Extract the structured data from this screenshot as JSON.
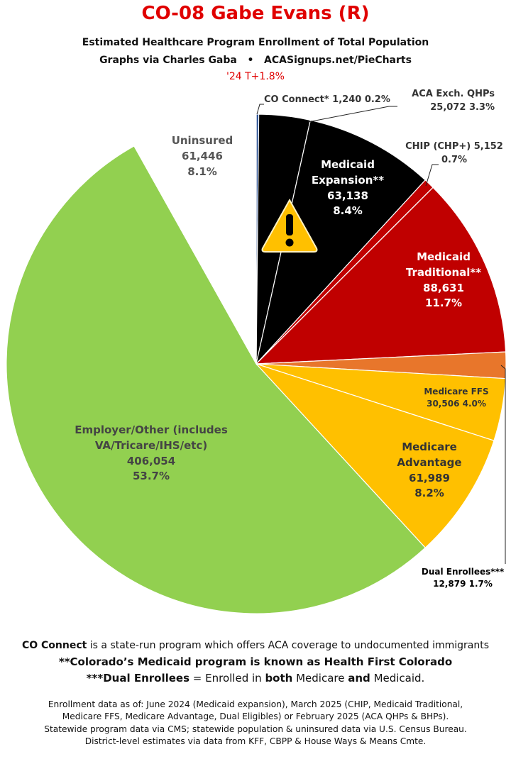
{
  "chart_data": {
    "type": "pie",
    "title": "CO-08 Gabe Evans (R)",
    "subtitle": [
      "Estimated Healthcare Program Enrollment of Total Population",
      "Graphs via Charles Gaba   •   ACASignups.net/PieCharts"
    ],
    "annotation": "'24 T+1.8%",
    "categories": [
      "CO Connect*",
      "ACA Exch. QHPs",
      "Medicaid Expansion**",
      "CHIP (CHP+)",
      "Medicaid Traditional**",
      "Dual Enrollees***",
      "Medicare FFS",
      "Medicare Advantage",
      "Employer/Other (includes VA/Tricare/IHS/etc)",
      "Uninsured"
    ],
    "values": [
      1240,
      25072,
      63138,
      5152,
      88631,
      12879,
      30506,
      61989,
      406054,
      61446
    ],
    "value_labels": [
      "1,240",
      "25,072",
      "63,138",
      "5,152",
      "88,631",
      "12,879",
      "30,506",
      "61,989",
      "406,054",
      "61,446"
    ],
    "percent_labels": [
      "0.2%",
      "3.3%",
      "8.4%",
      "0.7%",
      "11.7%",
      "1.7%",
      "4.0%",
      "8.2%",
      "53.7%",
      "8.1%"
    ],
    "colors": [
      "#2f5597",
      "#000000",
      "#000000",
      "#c00000",
      "#c00000",
      "#e8762b",
      "#ffc000",
      "#ffc000",
      "#92d050",
      "#ffffff"
    ]
  },
  "notes": [
    [
      "CO Connect",
      " is a state-run program which offers ACA coverage to undocumented immigrants"
    ],
    [
      "**Colorado’s Medicaid program is known as ",
      "Health First Colorado"
    ],
    [
      "***",
      "Dual Enrollees",
      " = Enrolled in ",
      "both",
      " Medicare ",
      "and",
      " Medicaid."
    ]
  ],
  "sources": [
    "Enrollment data as of: June 2024 (Medicaid expansion), March 2025 (CHIP, Medicaid Traditional,",
    "Medicare FFS, Medicare Advantage, Dual Eligibles) or February 2025 (ACA QHPs & BHPs).",
    "Statewide program data via CMS; statewide population & uninsured data via U.S. Census Bureau.",
    "District-level estimates via data from KFF, CBPP & House Ways & Means Cmte."
  ]
}
